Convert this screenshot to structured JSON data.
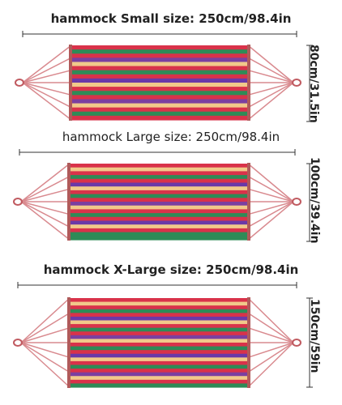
{
  "hammocks": [
    {
      "id": "small",
      "title": "hammock Small size: 250cm/98.4in",
      "width_label": "80cm/31.5in",
      "stripes": [
        "#d9324a",
        "#2e8b57",
        "#d9324a",
        "#7b3fa0",
        "#f1c98a",
        "#d9324a",
        "#2e8b57",
        "#d9324a",
        "#6a39a8",
        "#f1c98a",
        "#d9324a",
        "#2e8b57",
        "#d9324a",
        "#7b3fa0",
        "#f1c98a",
        "#d9324a",
        "#2e8b57",
        "#d9324a"
      ]
    },
    {
      "id": "large",
      "title": "hammock Large size: 250cm/98.4in",
      "width_label": "100cm/39.4in",
      "stripes": [
        "#d9324a",
        "#f1c98a",
        "#d9324a",
        "#2e8b57",
        "#d9324a",
        "#6a39a8",
        "#f1c98a",
        "#d9324a",
        "#2e8b57",
        "#d9324a",
        "#7b3fa0",
        "#f1c98a",
        "#d9324a",
        "#2e8b57",
        "#d9324a",
        "#6a39a8",
        "#f1c98a",
        "#d9324a",
        "#2e8b57",
        "#2e8b57"
      ]
    },
    {
      "id": "xlarge",
      "title": "hammock X-Large size: 250cm/98.4in",
      "width_label": "150cm/59in",
      "stripes": [
        "#d9324a",
        "#f1c98a",
        "#d9324a",
        "#2e8b57",
        "#d9324a",
        "#6a39a8",
        "#f1c98a",
        "#d9324a",
        "#2e8b57",
        "#d9324a",
        "#7b3fa0",
        "#f1c98a",
        "#d9324a",
        "#2e8b57",
        "#d9324a",
        "#6a39a8",
        "#f1c98a",
        "#d9324a",
        "#2e8b57",
        "#d9324a",
        "#7b3fa0",
        "#f1c98a",
        "#d9324a",
        "#2e8b57"
      ]
    }
  ],
  "colors": {
    "rope": "#d98a8f",
    "dimension_line": "#333333",
    "ring": "#c05a60"
  }
}
